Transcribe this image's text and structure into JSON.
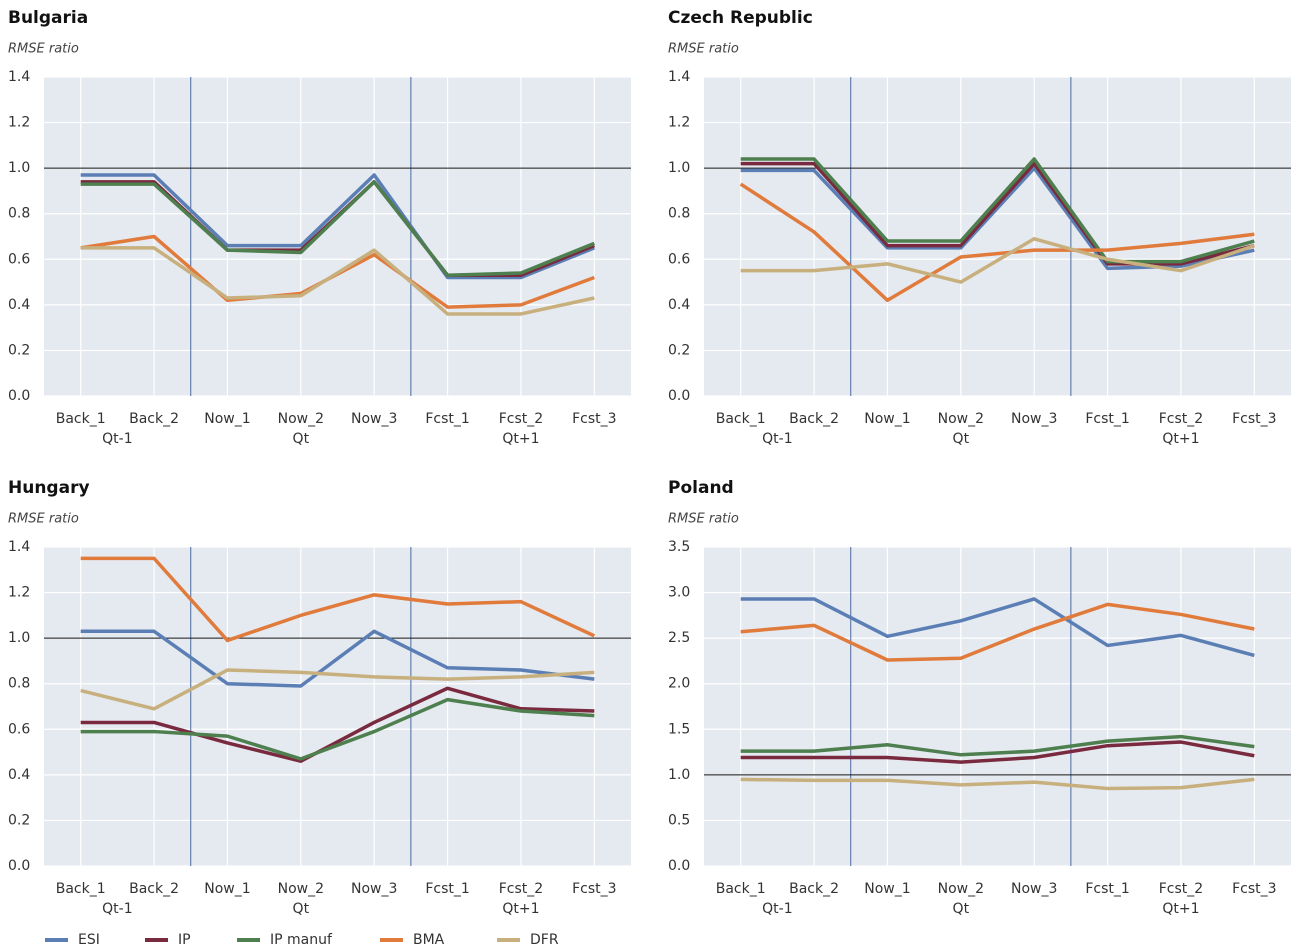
{
  "chart_data": [
    {
      "type": "line",
      "title": "Bulgaria",
      "ylabel": "RMSE ratio",
      "categories": [
        "Back_1",
        "Back_2",
        "Now_1",
        "Now_2",
        "Now_3",
        "Fcst_1",
        "Fcst_2",
        "Fcst_3"
      ],
      "groups": [
        "Qt-1",
        "Qt",
        "Qt+1"
      ],
      "ylim": [
        0,
        1.4
      ],
      "yticks": [
        {
          "value": 0,
          "label": "0.0"
        },
        0.2,
        0.4,
        0.6,
        0.8,
        {
          "value": 1,
          "label": "1.0"
        },
        1.2,
        1.4
      ],
      "reference_line": 1,
      "grid": true,
      "legend": "bottom-left",
      "series": [
        {
          "name": "ESI",
          "color": "#5b7fb5",
          "values": [
            0.97,
            0.97,
            0.66,
            0.66,
            0.97,
            0.52,
            0.52,
            0.65
          ]
        },
        {
          "name": "IP",
          "color": "#7a2a3e",
          "values": [
            0.94,
            0.94,
            0.64,
            0.64,
            0.94,
            0.53,
            0.53,
            0.66
          ]
        },
        {
          "name": "IP manuf",
          "color": "#4e7f4e",
          "values": [
            0.93,
            0.93,
            0.64,
            0.63,
            0.94,
            0.53,
            0.54,
            0.67
          ]
        },
        {
          "name": "BMA",
          "color": "#e07b3c",
          "values": [
            0.65,
            0.7,
            0.42,
            0.45,
            0.62,
            0.39,
            0.4,
            0.52
          ]
        },
        {
          "name": "DFR",
          "color": "#c8b07e",
          "values": [
            0.65,
            0.65,
            0.43,
            0.44,
            0.64,
            0.36,
            0.36,
            0.43
          ]
        }
      ]
    },
    {
      "type": "line",
      "title": "Czech Republic",
      "ylabel": "RMSE ratio",
      "categories": [
        "Back_1",
        "Back_2",
        "Now_1",
        "Now_2",
        "Now_3",
        "Fcst_1",
        "Fcst_2",
        "Fcst_3"
      ],
      "groups": [
        "Qt-1",
        "Qt",
        "Qt+1"
      ],
      "ylim": [
        0,
        1.4
      ],
      "yticks": [
        {
          "value": 0,
          "label": "0.0"
        },
        0.2,
        0.4,
        0.6,
        0.8,
        {
          "value": 1,
          "label": "1.0"
        },
        1.2,
        1.4
      ],
      "reference_line": 1,
      "grid": true,
      "series": [
        {
          "name": "ESI",
          "color": "#5b7fb5",
          "values": [
            0.99,
            0.99,
            0.65,
            0.65,
            1.0,
            0.56,
            0.57,
            0.64
          ]
        },
        {
          "name": "IP",
          "color": "#7a2a3e",
          "values": [
            1.02,
            1.02,
            0.66,
            0.66,
            1.02,
            0.58,
            0.58,
            0.66
          ]
        },
        {
          "name": "IP manuf",
          "color": "#4e7f4e",
          "values": [
            1.04,
            1.04,
            0.68,
            0.68,
            1.04,
            0.59,
            0.59,
            0.68
          ]
        },
        {
          "name": "BMA",
          "color": "#e07b3c",
          "values": [
            0.93,
            0.72,
            0.42,
            0.61,
            0.64,
            0.64,
            0.67,
            0.71
          ]
        },
        {
          "name": "DFR",
          "color": "#c8b07e",
          "values": [
            0.55,
            0.55,
            0.58,
            0.5,
            0.69,
            0.6,
            0.55,
            0.66
          ]
        }
      ]
    },
    {
      "type": "line",
      "title": "Hungary",
      "ylabel": "RMSE ratio",
      "categories": [
        "Back_1",
        "Back_2",
        "Now_1",
        "Now_2",
        "Now_3",
        "Fcst_1",
        "Fcst_2",
        "Fcst_3"
      ],
      "groups": [
        "Qt-1",
        "Qt",
        "Qt+1"
      ],
      "ylim": [
        0,
        1.4
      ],
      "yticks": [
        {
          "value": 0,
          "label": "0.0"
        },
        0.2,
        0.4,
        0.6,
        0.8,
        {
          "value": 1,
          "label": "1.0"
        },
        1.2,
        1.4
      ],
      "reference_line": 1,
      "grid": true,
      "series": [
        {
          "name": "ESI",
          "color": "#5b7fb5",
          "values": [
            1.03,
            1.03,
            0.8,
            0.79,
            1.03,
            0.87,
            0.86,
            0.82
          ]
        },
        {
          "name": "IP",
          "color": "#7a2a3e",
          "values": [
            0.63,
            0.63,
            0.54,
            0.46,
            0.63,
            0.78,
            0.69,
            0.68
          ]
        },
        {
          "name": "IP manuf",
          "color": "#4e7f4e",
          "values": [
            0.59,
            0.59,
            0.57,
            0.47,
            0.59,
            0.73,
            0.68,
            0.66
          ]
        },
        {
          "name": "BMA",
          "color": "#e07b3c",
          "values": [
            1.35,
            1.35,
            0.99,
            1.1,
            1.19,
            1.15,
            1.16,
            1.01
          ]
        },
        {
          "name": "DFR",
          "color": "#c8b07e",
          "values": [
            0.77,
            0.69,
            0.86,
            0.85,
            0.83,
            0.82,
            0.83,
            0.85
          ]
        }
      ]
    },
    {
      "type": "line",
      "title": "Poland",
      "ylabel": "RMSE ratio",
      "categories": [
        "Back_1",
        "Back_2",
        "Now_1",
        "Now_2",
        "Now_3",
        "Fcst_1",
        "Fcst_2",
        "Fcst_3"
      ],
      "groups": [
        "Qt-1",
        "Qt",
        "Qt+1"
      ],
      "ylim": [
        0,
        3.5
      ],
      "yticks": [
        {
          "value": 0,
          "label": "0.0"
        },
        0.5,
        {
          "value": 1,
          "label": "1.0"
        },
        1.5,
        {
          "value": 2,
          "label": "2.0"
        },
        2.5,
        {
          "value": 3,
          "label": "3.0"
        },
        3.5
      ],
      "reference_line": 1,
      "grid": true,
      "series": [
        {
          "name": "ESI",
          "color": "#5b7fb5",
          "values": [
            2.93,
            2.93,
            2.52,
            2.69,
            2.93,
            2.42,
            2.53,
            2.31
          ]
        },
        {
          "name": "IP",
          "color": "#7a2a3e",
          "values": [
            1.19,
            1.19,
            1.19,
            1.14,
            1.19,
            1.32,
            1.36,
            1.21
          ]
        },
        {
          "name": "IP manuf",
          "color": "#4e7f4e",
          "values": [
            1.26,
            1.26,
            1.33,
            1.22,
            1.26,
            1.37,
            1.42,
            1.31
          ]
        },
        {
          "name": "BMA",
          "color": "#e07b3c",
          "values": [
            2.57,
            2.64,
            2.26,
            2.28,
            2.6,
            2.87,
            2.76,
            2.6
          ]
        },
        {
          "name": "DFR",
          "color": "#c8b07e",
          "values": [
            0.95,
            0.94,
            0.94,
            0.89,
            0.92,
            0.85,
            0.86,
            0.95
          ]
        }
      ]
    }
  ]
}
